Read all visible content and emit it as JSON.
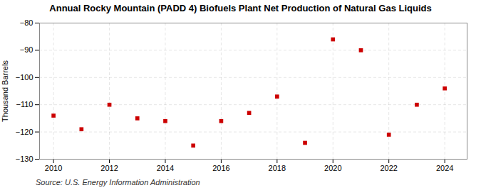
{
  "chart_data": {
    "type": "scatter",
    "title": "Annual Rocky Mountain (PADD 4) Biofuels Plant Net Production of Natural Gas Liquids",
    "ylabel": "Thousand Barrels",
    "source": "Source: U.S. Energy Information Administration",
    "x": [
      2010,
      2011,
      2012,
      2013,
      2014,
      2015,
      2016,
      2017,
      2018,
      2019,
      2020,
      2021,
      2022,
      2023,
      2024
    ],
    "values": [
      -114,
      -119,
      -110,
      -115,
      -116,
      -125,
      -116,
      -113,
      -107,
      -124,
      -86,
      -90,
      -121,
      -110,
      -104
    ],
    "color": "#cc0000",
    "marker": "square",
    "ylim": [
      -130,
      -80
    ],
    "yticks": [
      -130,
      -120,
      -110,
      -100,
      -90,
      -80
    ],
    "xlim": [
      2009.5,
      2024.8
    ],
    "xticks": [
      2010,
      2012,
      2014,
      2016,
      2018,
      2020,
      2022,
      2024
    ],
    "grid": true
  }
}
